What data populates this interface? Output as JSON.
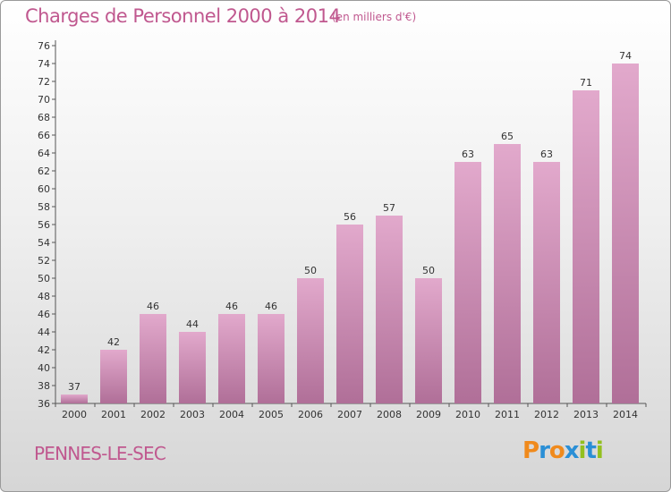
{
  "title": "Charges de Personnel 2000 à 2014",
  "subtitle": "(en milliers d'€)",
  "city": "PENNES-LE-SEC",
  "logo": {
    "text": "Proxiti",
    "letter_colors": [
      "#f08a1c",
      "#2a8fd6",
      "#f08a1c",
      "#2a8fd6",
      "#93c01f",
      "#2a8fd6",
      "#93c01f"
    ]
  },
  "chart_data": {
    "type": "bar",
    "title": "Charges de Personnel 2000 à 2014",
    "subtitle": "(en milliers d'€)",
    "categories": [
      "2000",
      "2001",
      "2002",
      "2003",
      "2004",
      "2005",
      "2006",
      "2007",
      "2008",
      "2009",
      "2010",
      "2011",
      "2012",
      "2013",
      "2014"
    ],
    "values": [
      37,
      42,
      46,
      44,
      46,
      46,
      50,
      56,
      57,
      50,
      63,
      65,
      63,
      71,
      74
    ],
    "ylim": [
      36,
      76
    ],
    "ytick_step": 2,
    "grid": false,
    "colors": {
      "bar_light": "#e2a9cc",
      "bar_dark": "#b06f98",
      "text": "#333333",
      "axis": "#555555"
    }
  }
}
